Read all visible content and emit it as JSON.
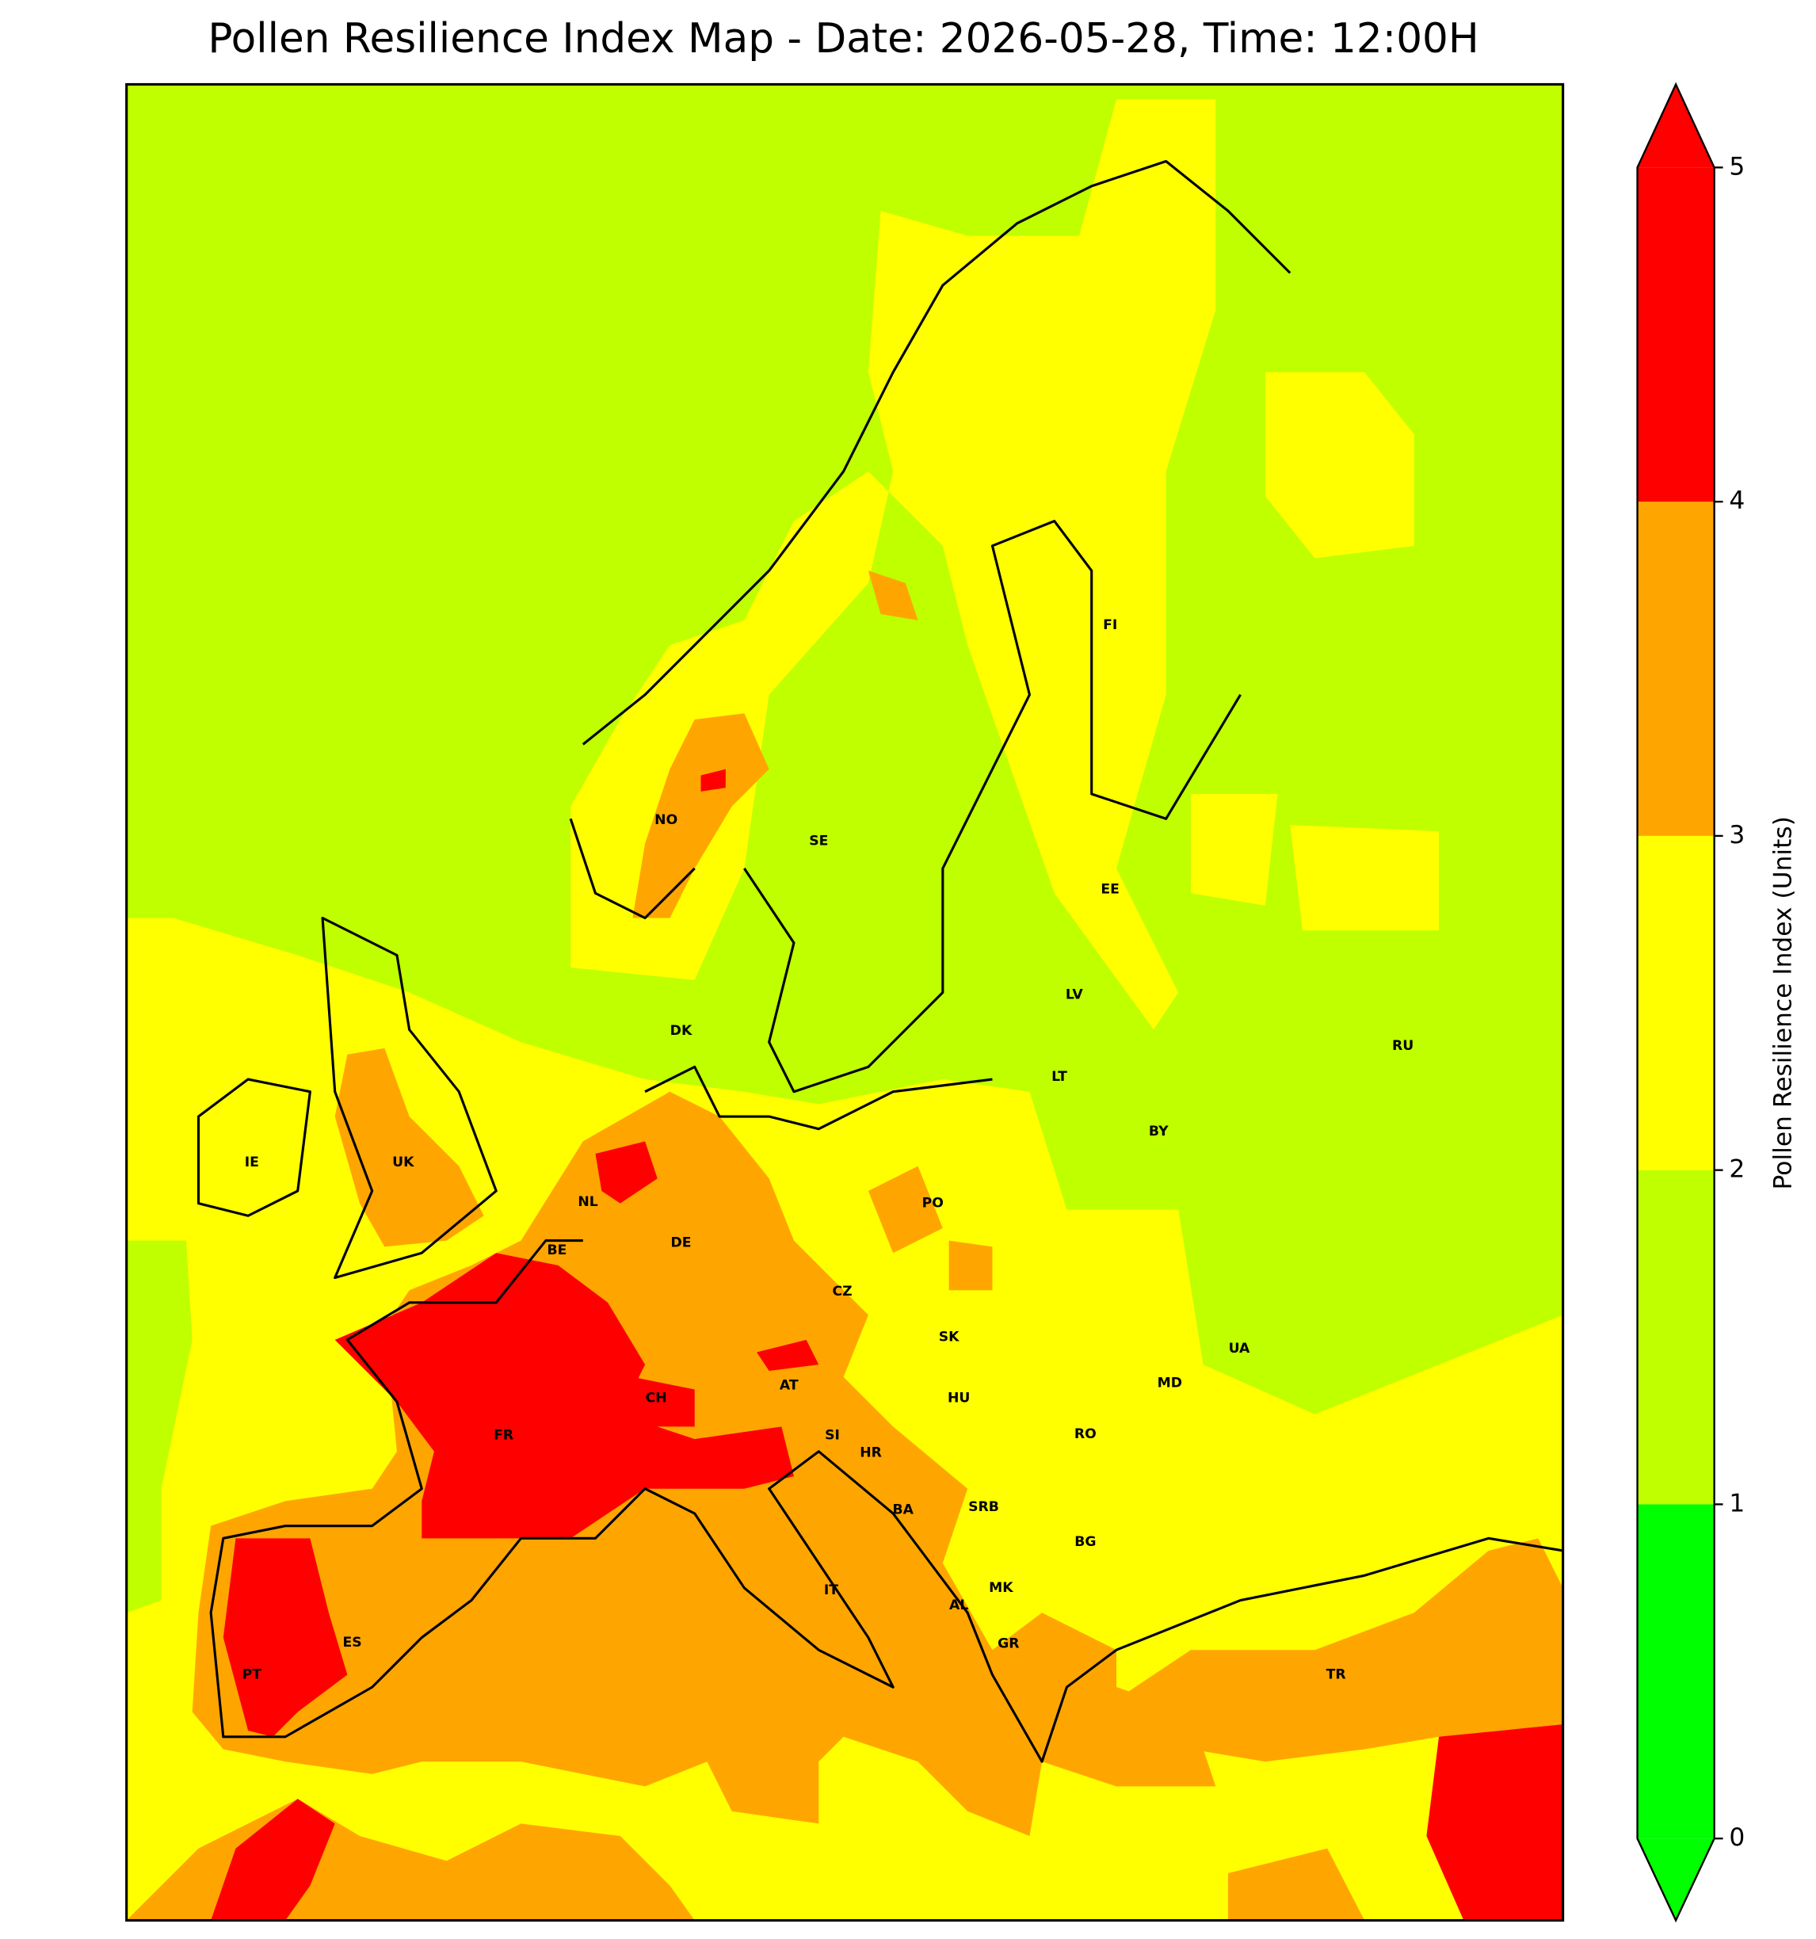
{
  "title": "Pollen Resilience Index Map - Date: 2026-05-28, Time: 12:00H",
  "colorbar": {
    "label": "Pollen Resilience Index (Units)",
    "ticks": [
      0,
      1,
      2,
      3,
      4,
      5
    ],
    "colors": [
      "#00ff00",
      "#bfff00",
      "#ffff00",
      "#ffa500",
      "#ff0000"
    ]
  },
  "countries": [
    "NO",
    "SE",
    "FI",
    "EE",
    "LV",
    "LT",
    "DK",
    "RU",
    "BY",
    "IE",
    "UK",
    "NL",
    "PO",
    "DE",
    "BE",
    "CZ",
    "SK",
    "UA",
    "AT",
    "MD",
    "CH",
    "HU",
    "FR",
    "RO",
    "SI",
    "HR",
    "BA",
    "SRB",
    "BG",
    "MK",
    "IT",
    "AL",
    "ES",
    "GR",
    "TR",
    "PT"
  ]
}
